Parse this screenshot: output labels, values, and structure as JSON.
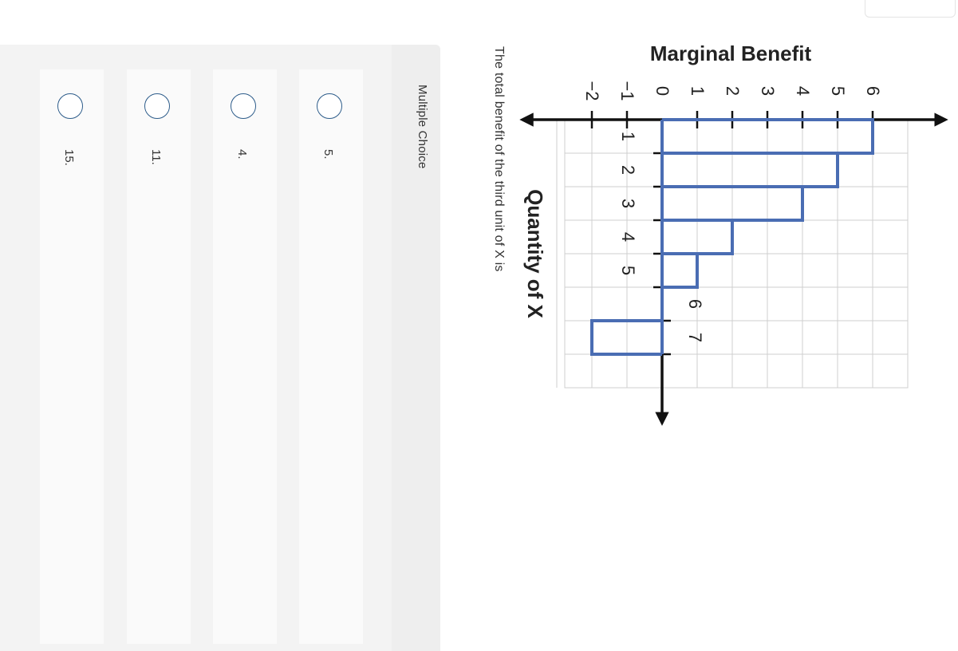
{
  "question": {
    "text": "The total benefit of the third unit of X is",
    "type_label": "Multiple Choice",
    "choices": [
      {
        "label": "5."
      },
      {
        "label": "4."
      },
      {
        "label": "11."
      },
      {
        "label": "15."
      }
    ]
  },
  "chart_data": {
    "type": "line",
    "step": true,
    "xlabel": "Quantity of X",
    "ylabel": "Marginal Benefit",
    "x_ticks": [
      1,
      2,
      3,
      4,
      5,
      6,
      7
    ],
    "y_ticks": [
      -2,
      -1,
      0,
      1,
      2,
      3,
      4,
      5,
      6
    ],
    "x_tick_labels": [
      "1",
      "2",
      "3",
      "4",
      "5",
      "6",
      "7"
    ],
    "y_tick_labels": [
      "−2",
      "−1",
      "0",
      "1",
      "2",
      "3",
      "4",
      "5",
      "6"
    ],
    "xlim": [
      0,
      7.5
    ],
    "ylim": [
      -2,
      6
    ],
    "grid": true,
    "series": [
      {
        "color": "#4a6db3",
        "x": [
          1,
          2,
          3,
          4,
          5,
          6,
          7
        ],
        "values": [
          6,
          5,
          4,
          2,
          1,
          0,
          -2
        ]
      }
    ]
  }
}
